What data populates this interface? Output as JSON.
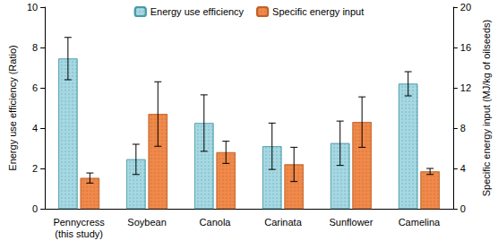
{
  "chart_data": {
    "type": "bar",
    "categories": [
      "Pennycress\n(this study)",
      "Soybean",
      "Canola",
      "Carinata",
      "Sunflower",
      "Camelina"
    ],
    "series": [
      {
        "name": "Energy use efficiency",
        "color": "#a6d8e2",
        "axis": "y",
        "values": [
          7.45,
          2.45,
          4.25,
          3.1,
          3.25,
          6.2
        ],
        "errors": [
          1.05,
          0.75,
          1.4,
          1.15,
          1.1,
          0.6
        ]
      },
      {
        "name": "Specific energy input",
        "color": "#f0894a",
        "axis": "y2",
        "values": [
          3.05,
          9.4,
          5.6,
          4.4,
          8.6,
          3.7
        ],
        "errors": [
          0.5,
          3.2,
          1.1,
          1.7,
          2.5,
          0.3
        ]
      }
    ],
    "ylabel": "Energy use efficiency (Ratio)",
    "y2label": "Specific energy input (MJ/kg of oilseeds)",
    "ylim": [
      0,
      10
    ],
    "yticks": [
      0,
      2,
      4,
      6,
      8,
      10
    ],
    "y2lim": [
      0,
      20
    ],
    "y2ticks": [
      0,
      4,
      8,
      12,
      16,
      20
    ],
    "legend": "top",
    "grid": false
  }
}
